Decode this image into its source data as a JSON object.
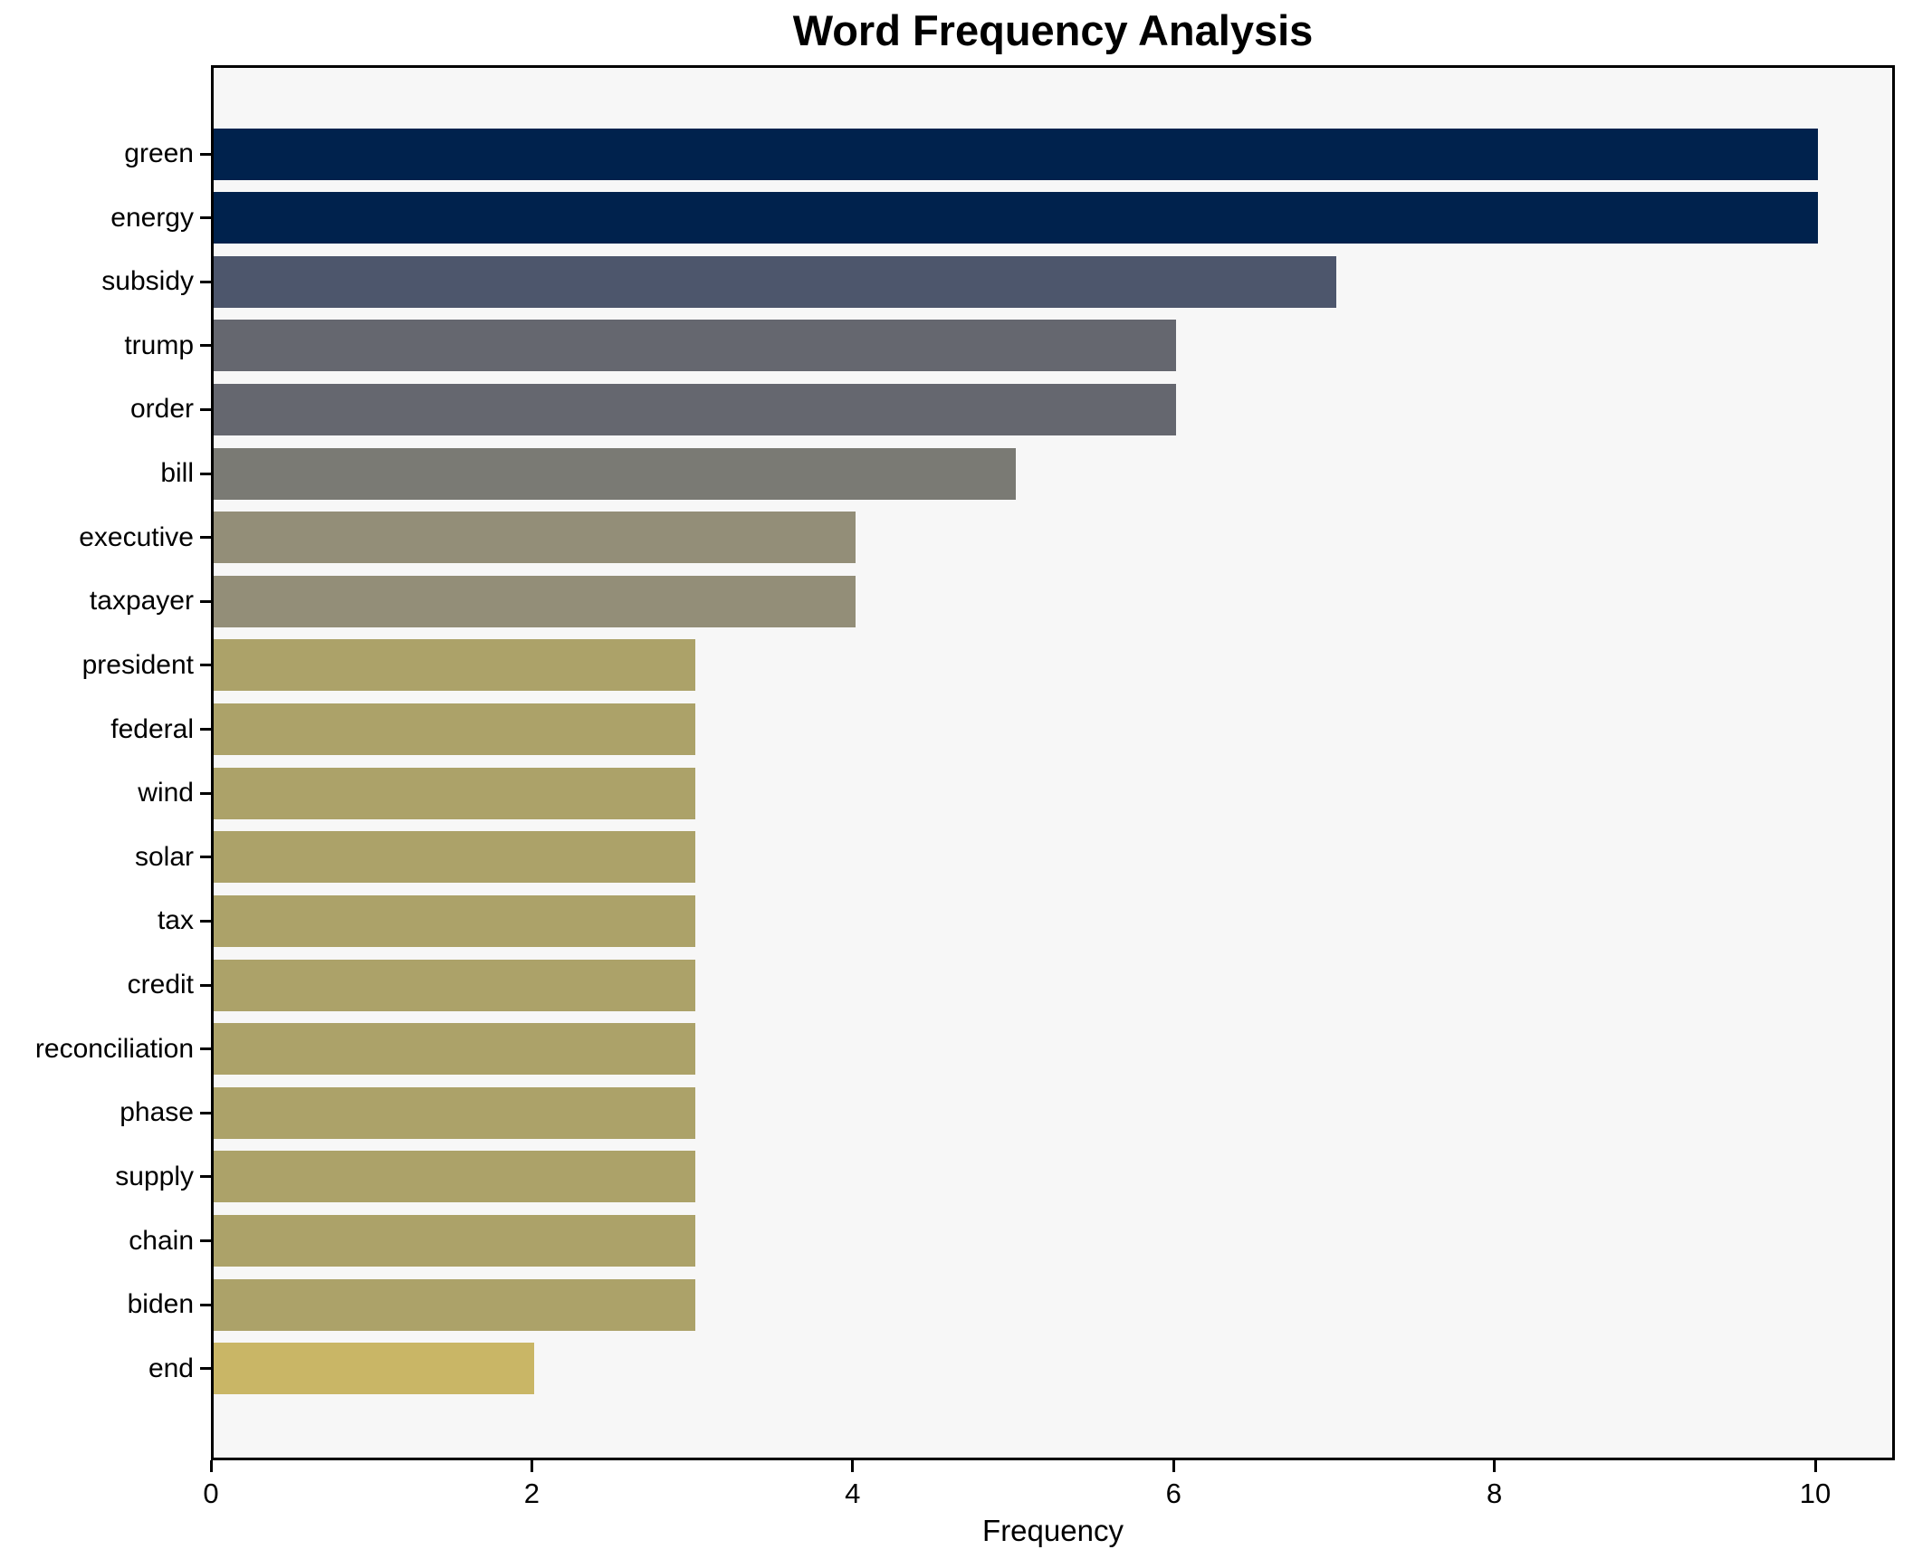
{
  "chart_data": {
    "type": "bar",
    "orientation": "horizontal",
    "title": "Word Frequency Analysis",
    "xlabel": "Frequency",
    "ylabel": "",
    "categories": [
      "green",
      "energy",
      "subsidy",
      "trump",
      "order",
      "bill",
      "executive",
      "taxpayer",
      "president",
      "federal",
      "wind",
      "solar",
      "tax",
      "credit",
      "reconciliation",
      "phase",
      "supply",
      "chain",
      "biden",
      "end"
    ],
    "values": [
      10,
      10,
      7,
      6,
      6,
      5,
      4,
      4,
      3,
      3,
      3,
      3,
      3,
      3,
      3,
      3,
      3,
      3,
      3,
      2
    ],
    "bar_colors": [
      "#00224d",
      "#00224d",
      "#4d566c",
      "#65676f",
      "#65676f",
      "#7a7a74",
      "#938e78",
      "#938e78",
      "#aca269",
      "#aca269",
      "#aca269",
      "#aca269",
      "#aca269",
      "#aca269",
      "#aca269",
      "#aca269",
      "#aca269",
      "#aca269",
      "#aca269",
      "#c9b666"
    ],
    "xlim": [
      0,
      10.5
    ],
    "x_ticks": [
      0,
      2,
      4,
      6,
      8,
      10
    ],
    "grid": false,
    "legend": false,
    "plot_background": "#f7f7f7",
    "figure_background": "#ffffff",
    "axis_color": "#000000",
    "text_color": "#000000"
  }
}
